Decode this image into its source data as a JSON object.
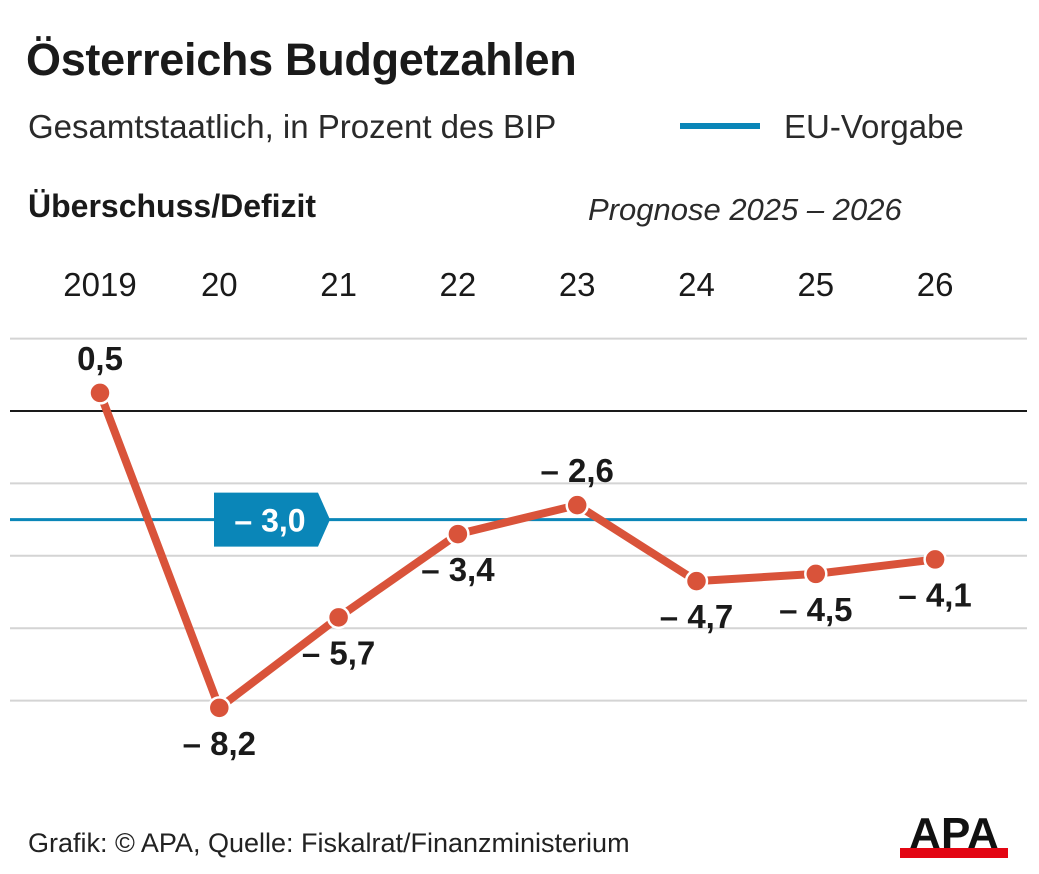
{
  "title": "Österreichs Budgetzahlen",
  "subtitle": "Gesamtstaatlich, in Prozent des BIP",
  "legend": {
    "eu_label": "EU-Vorgabe"
  },
  "section_label": "Überschuss/Defizit",
  "forecast_label": "Prognose 2025 – 2026",
  "source": "Grafik: © APA, Quelle: Fiskalrat/Finanzministerium",
  "logo_text": "APA",
  "colors": {
    "series": "#d9533a",
    "eu_line": "#0a86b8",
    "grid": "#d4d4d4",
    "zero_line": "#1a1a1a",
    "logo_red": "#e30613"
  },
  "chart_data": {
    "type": "line",
    "x": [
      2019,
      2020,
      2021,
      2022,
      2023,
      2024,
      2025,
      2026
    ],
    "tick_labels": [
      "2019",
      "20",
      "21",
      "22",
      "23",
      "24",
      "25",
      "26"
    ],
    "values": [
      0.5,
      -8.2,
      -5.7,
      -3.4,
      -2.6,
      -4.7,
      -4.5,
      -4.1
    ],
    "value_labels": [
      "0,5",
      "– 8,2",
      "– 5,7",
      "– 3,4",
      "– 2,6",
      "– 4,7",
      "– 4,5",
      "– 4,1"
    ],
    "reference_line": {
      "value": -3.0,
      "label": "– 3,0"
    },
    "gridlines": [
      2,
      -2,
      -4,
      -6,
      -8
    ],
    "ylim": [
      -9,
      2
    ],
    "grid": true
  }
}
